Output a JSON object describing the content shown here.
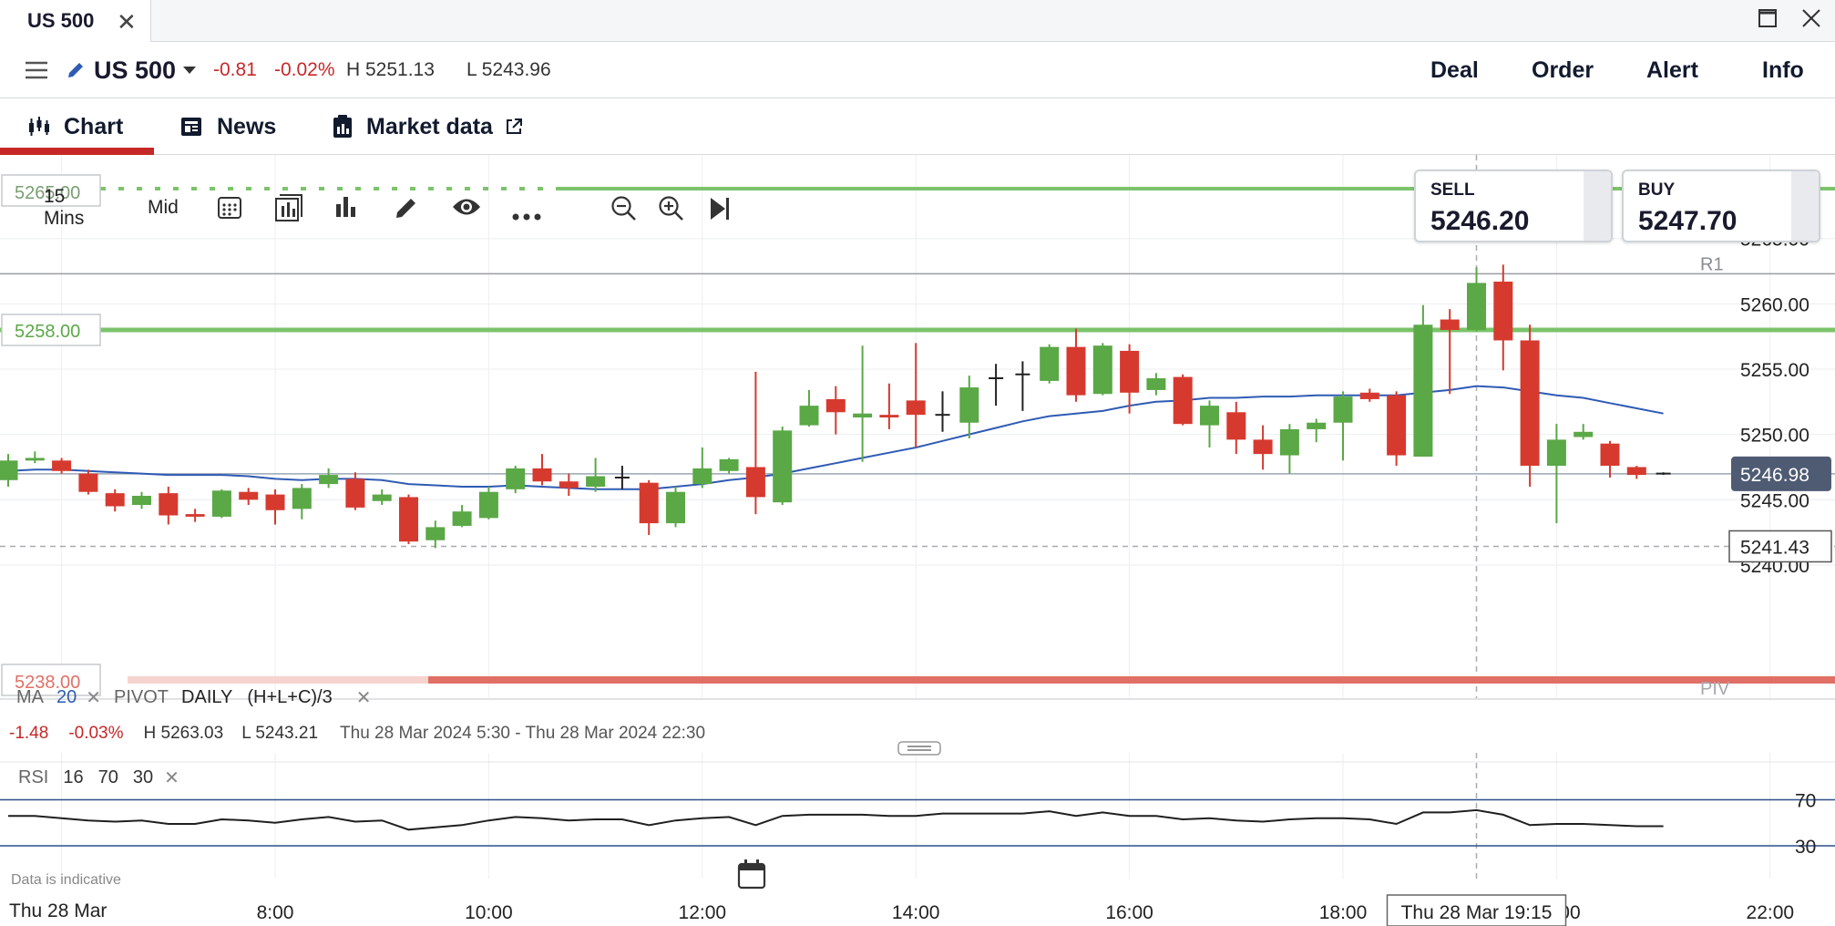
{
  "window": {
    "tab_title": "US 500",
    "tab_close": "✕",
    "maximize": "☐",
    "close": "✕"
  },
  "header": {
    "instrument": "US 500",
    "change": "-0.81",
    "change_pct": "-0.02%",
    "high": "H 5251.13",
    "low": "L 5243.96",
    "actions": [
      "Deal",
      "Order",
      "Alert",
      "Info"
    ]
  },
  "tabs": {
    "chart": "Chart",
    "news": "News",
    "market_data": "Market data"
  },
  "toolbar": {
    "interval": "15 Mins",
    "price_type": "Mid"
  },
  "quotes": {
    "sell_label": "SELL",
    "sell_value": "5246.20",
    "buy_label": "BUY",
    "buy_value": "5247.70"
  },
  "levels": {
    "r1_label": "R1",
    "piv_label": "PIV",
    "green_level": "5258.00",
    "current_price": "5246.98",
    "crosshair_price": "5241.43",
    "top_tag": "5265.00",
    "bottom_tag": "5238.00"
  },
  "indicators": {
    "ma_label": "MA",
    "ma_value": "20",
    "pivot_label": "PIVOT",
    "pivot_period": "DAILY",
    "pivot_formula": "(H+L+C)/3",
    "rsi_label": "RSI",
    "rsi_params": [
      "16",
      "70",
      "30"
    ]
  },
  "summary": {
    "change": "-1.48",
    "change_pct": "-0.03%",
    "high": "H 5263.03",
    "low": "L 5243.21",
    "range": "Thu 28 Mar 2024 5:30 - Thu 28 Mar 2024 22:30"
  },
  "footer": {
    "disclaimer": "Data is indicative",
    "date": "Thu 28 Mar",
    "crosshair_time": "Thu 28 Mar 19:15"
  },
  "colors": {
    "up": "#5aa846",
    "down": "#d63a2f",
    "ma": "#2f5bb4",
    "green_level": "#7cc36b",
    "piv_level": "#e07065",
    "accent": "#c62828"
  },
  "chart_data": {
    "type": "candlestick",
    "interval": "15 Mins",
    "y_ticks": [
      5265,
      5260,
      5255,
      5250,
      5245,
      5240
    ],
    "ylim": [
      5238.6,
      5268.0
    ],
    "x_ticks": [
      "8:00",
      "10:00",
      "12:00",
      "14:00",
      "16:00",
      "18:00",
      "20:00",
      "22:00"
    ],
    "x_start": "05:30",
    "bar_minutes": 15,
    "candles": [
      {
        "o": 5246.5,
        "c": 5248.0,
        "h": 5248.5,
        "l": 5246.0
      },
      {
        "o": 5248.0,
        "c": 5248.2,
        "h": 5248.7,
        "l": 5247.8
      },
      {
        "o": 5248.0,
        "c": 5247.2,
        "h": 5248.2,
        "l": 5247.0
      },
      {
        "o": 5247.0,
        "c": 5245.6,
        "h": 5247.3,
        "l": 5245.4
      },
      {
        "o": 5245.5,
        "c": 5244.5,
        "h": 5245.8,
        "l": 5244.1
      },
      {
        "o": 5244.6,
        "c": 5245.3,
        "h": 5245.6,
        "l": 5244.3
      },
      {
        "o": 5245.5,
        "c": 5243.8,
        "h": 5246.0,
        "l": 5243.1
      },
      {
        "o": 5243.9,
        "c": 5243.7,
        "h": 5244.3,
        "l": 5243.3
      },
      {
        "o": 5243.7,
        "c": 5245.7,
        "h": 5245.8,
        "l": 5243.6
      },
      {
        "o": 5245.6,
        "c": 5245.0,
        "h": 5245.9,
        "l": 5244.6
      },
      {
        "o": 5245.4,
        "c": 5244.2,
        "h": 5245.8,
        "l": 5243.1
      },
      {
        "o": 5244.3,
        "c": 5245.9,
        "h": 5246.2,
        "l": 5243.5
      },
      {
        "o": 5246.2,
        "c": 5246.9,
        "h": 5247.4,
        "l": 5245.9
      },
      {
        "o": 5246.6,
        "c": 5244.4,
        "h": 5247.1,
        "l": 5244.2
      },
      {
        "o": 5244.9,
        "c": 5245.4,
        "h": 5245.8,
        "l": 5244.6
      },
      {
        "o": 5245.2,
        "c": 5241.8,
        "h": 5245.4,
        "l": 5241.6
      },
      {
        "o": 5241.9,
        "c": 5242.9,
        "h": 5243.4,
        "l": 5241.3
      },
      {
        "o": 5243.0,
        "c": 5244.1,
        "h": 5244.6,
        "l": 5242.9
      },
      {
        "o": 5243.6,
        "c": 5245.6,
        "h": 5246.0,
        "l": 5243.5
      },
      {
        "o": 5245.8,
        "c": 5247.4,
        "h": 5247.6,
        "l": 5245.5
      },
      {
        "o": 5247.4,
        "c": 5246.4,
        "h": 5248.5,
        "l": 5246.1
      },
      {
        "o": 5246.4,
        "c": 5245.9,
        "h": 5247.0,
        "l": 5245.3
      },
      {
        "o": 5246.0,
        "c": 5246.8,
        "h": 5248.2,
        "l": 5245.6
      },
      {
        "o": 5246.7,
        "c": 5246.7,
        "h": 5247.6,
        "l": 5245.8
      },
      {
        "o": 5246.3,
        "c": 5243.2,
        "h": 5246.5,
        "l": 5242.3
      },
      {
        "o": 5243.2,
        "c": 5245.6,
        "h": 5246.0,
        "l": 5242.9
      },
      {
        "o": 5246.2,
        "c": 5247.4,
        "h": 5249.0,
        "l": 5245.9
      },
      {
        "o": 5247.2,
        "c": 5248.1,
        "h": 5248.2,
        "l": 5247.0
      },
      {
        "o": 5247.5,
        "c": 5245.2,
        "h": 5254.8,
        "l": 5243.9
      },
      {
        "o": 5244.8,
        "c": 5250.3,
        "h": 5250.6,
        "l": 5244.6
      },
      {
        "o": 5250.7,
        "c": 5252.2,
        "h": 5253.4,
        "l": 5250.6
      },
      {
        "o": 5252.7,
        "c": 5251.7,
        "h": 5253.7,
        "l": 5250.0
      },
      {
        "o": 5251.3,
        "c": 5251.6,
        "h": 5256.8,
        "l": 5247.9
      },
      {
        "o": 5251.5,
        "c": 5251.3,
        "h": 5253.9,
        "l": 5250.4
      },
      {
        "o": 5252.6,
        "c": 5251.5,
        "h": 5257.0,
        "l": 5249.0
      },
      {
        "o": 5251.5,
        "c": 5251.4,
        "h": 5253.3,
        "l": 5250.2
      },
      {
        "o": 5250.9,
        "c": 5253.6,
        "h": 5254.5,
        "l": 5249.7
      },
      {
        "o": 5254.3,
        "c": 5254.4,
        "h": 5255.4,
        "l": 5252.2
      },
      {
        "o": 5254.6,
        "c": 5254.6,
        "h": 5255.6,
        "l": 5251.8
      },
      {
        "o": 5254.1,
        "c": 5256.7,
        "h": 5256.9,
        "l": 5253.9
      },
      {
        "o": 5256.7,
        "c": 5253.0,
        "h": 5258.1,
        "l": 5252.5
      },
      {
        "o": 5253.1,
        "c": 5256.8,
        "h": 5257.0,
        "l": 5253.0
      },
      {
        "o": 5256.4,
        "c": 5253.2,
        "h": 5256.9,
        "l": 5251.6
      },
      {
        "o": 5253.4,
        "c": 5254.3,
        "h": 5254.7,
        "l": 5253.0
      },
      {
        "o": 5254.4,
        "c": 5250.8,
        "h": 5254.6,
        "l": 5250.7
      },
      {
        "o": 5250.7,
        "c": 5252.2,
        "h": 5252.6,
        "l": 5249.0
      },
      {
        "o": 5251.7,
        "c": 5249.6,
        "h": 5252.5,
        "l": 5248.5
      },
      {
        "o": 5249.6,
        "c": 5248.5,
        "h": 5250.7,
        "l": 5247.3
      },
      {
        "o": 5248.4,
        "c": 5250.4,
        "h": 5250.8,
        "l": 5247.0
      },
      {
        "o": 5250.4,
        "c": 5250.9,
        "h": 5251.2,
        "l": 5249.4
      },
      {
        "o": 5250.9,
        "c": 5252.9,
        "h": 5253.3,
        "l": 5248.0
      },
      {
        "o": 5253.2,
        "c": 5252.7,
        "h": 5253.5,
        "l": 5252.5
      },
      {
        "o": 5253.0,
        "c": 5248.4,
        "h": 5253.3,
        "l": 5247.6
      },
      {
        "o": 5248.3,
        "c": 5258.4,
        "h": 5259.9,
        "l": 5248.3
      },
      {
        "o": 5258.8,
        "c": 5258.0,
        "h": 5259.6,
        "l": 5253.1
      },
      {
        "o": 5258.0,
        "c": 5261.6,
        "h": 5262.8,
        "l": 5257.9
      },
      {
        "o": 5261.7,
        "c": 5257.2,
        "h": 5263.0,
        "l": 5254.9
      },
      {
        "o": 5257.2,
        "c": 5247.6,
        "h": 5258.4,
        "l": 5246.0
      },
      {
        "o": 5247.6,
        "c": 5249.6,
        "h": 5250.8,
        "l": 5243.2
      },
      {
        "o": 5249.8,
        "c": 5250.2,
        "h": 5250.8,
        "l": 5249.6
      },
      {
        "o": 5249.3,
        "c": 5247.6,
        "h": 5249.5,
        "l": 5246.7
      },
      {
        "o": 5247.5,
        "c": 5246.9,
        "h": 5247.6,
        "l": 5246.6
      },
      {
        "o": 5247.0,
        "c": 5247.0,
        "h": 5247.1,
        "l": 5246.9
      }
    ],
    "ma20": [
      5247.2,
      5247.3,
      5247.3,
      5247.2,
      5247.1,
      5247.0,
      5246.9,
      5246.9,
      5246.9,
      5246.8,
      5246.6,
      5246.5,
      5246.6,
      5246.6,
      5246.5,
      5246.2,
      5246.1,
      5246.0,
      5246.0,
      5246.1,
      5246.0,
      5245.9,
      5245.8,
      5245.8,
      5245.8,
      5246.0,
      5246.2,
      5246.5,
      5246.7,
      5247.0,
      5247.4,
      5247.8,
      5248.2,
      5248.6,
      5249.0,
      5249.5,
      5250.0,
      5250.5,
      5251.0,
      5251.4,
      5251.6,
      5251.8,
      5252.2,
      5252.5,
      5252.6,
      5252.8,
      5252.8,
      5252.9,
      5252.9,
      5253.0,
      5253.0,
      5253.0,
      5253.0,
      5253.2,
      5253.4,
      5253.7,
      5253.6,
      5253.3,
      5253.0,
      5252.8,
      5252.4,
      5252.0,
      5251.6
    ],
    "rsi": [
      56,
      56,
      54,
      52,
      51,
      52,
      49,
      49,
      53,
      52,
      50,
      53,
      55,
      51,
      52,
      44,
      46,
      48,
      52,
      55,
      54,
      52,
      53,
      53,
      48,
      52,
      54,
      55,
      48,
      56,
      57,
      57,
      57,
      56,
      56,
      58,
      58,
      58,
      58,
      60,
      56,
      59,
      56,
      56,
      53,
      54,
      52,
      51,
      53,
      54,
      54,
      53,
      49,
      59,
      59,
      61,
      57,
      48,
      49,
      49,
      48,
      47,
      47
    ],
    "rsi_levels": [
      70,
      30
    ],
    "r1": 5262.3,
    "pivot": 5239.2,
    "horizontal_levels": {
      "green": 5258.0,
      "current": 5246.98,
      "crosshair": 5241.43
    }
  }
}
